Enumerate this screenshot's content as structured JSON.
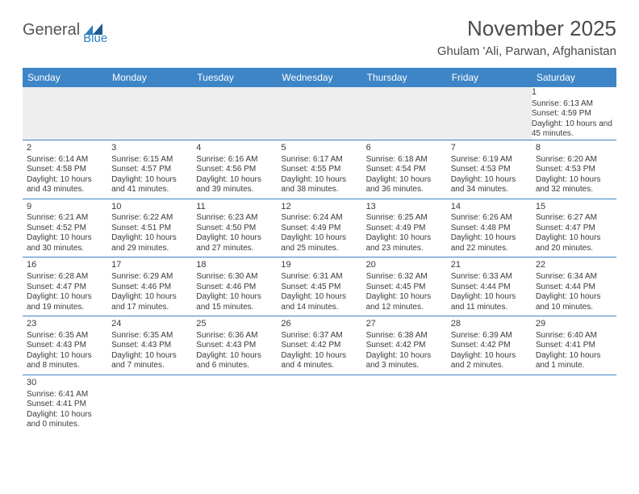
{
  "logo": {
    "main": "General",
    "sub": "Blue"
  },
  "title": "November 2025",
  "location": "Ghulam 'Ali, Parwan, Afghanistan",
  "colors": {
    "header_bg": "#3d85c6",
    "header_text": "#ffffff",
    "empty_bg": "#eeeeee",
    "row_divider": "#3d85c6",
    "text": "#3a3a3a",
    "logo_main": "#555555",
    "logo_sub": "#2f7fc2"
  },
  "weekdays": [
    "Sunday",
    "Monday",
    "Tuesday",
    "Wednesday",
    "Thursday",
    "Friday",
    "Saturday"
  ],
  "weeks": [
    [
      null,
      null,
      null,
      null,
      null,
      null,
      {
        "n": "1",
        "sr": "6:13 AM",
        "ss": "4:59 PM",
        "dl": "10 hours and 45 minutes."
      }
    ],
    [
      {
        "n": "2",
        "sr": "6:14 AM",
        "ss": "4:58 PM",
        "dl": "10 hours and 43 minutes."
      },
      {
        "n": "3",
        "sr": "6:15 AM",
        "ss": "4:57 PM",
        "dl": "10 hours and 41 minutes."
      },
      {
        "n": "4",
        "sr": "6:16 AM",
        "ss": "4:56 PM",
        "dl": "10 hours and 39 minutes."
      },
      {
        "n": "5",
        "sr": "6:17 AM",
        "ss": "4:55 PM",
        "dl": "10 hours and 38 minutes."
      },
      {
        "n": "6",
        "sr": "6:18 AM",
        "ss": "4:54 PM",
        "dl": "10 hours and 36 minutes."
      },
      {
        "n": "7",
        "sr": "6:19 AM",
        "ss": "4:53 PM",
        "dl": "10 hours and 34 minutes."
      },
      {
        "n": "8",
        "sr": "6:20 AM",
        "ss": "4:53 PM",
        "dl": "10 hours and 32 minutes."
      }
    ],
    [
      {
        "n": "9",
        "sr": "6:21 AM",
        "ss": "4:52 PM",
        "dl": "10 hours and 30 minutes."
      },
      {
        "n": "10",
        "sr": "6:22 AM",
        "ss": "4:51 PM",
        "dl": "10 hours and 29 minutes."
      },
      {
        "n": "11",
        "sr": "6:23 AM",
        "ss": "4:50 PM",
        "dl": "10 hours and 27 minutes."
      },
      {
        "n": "12",
        "sr": "6:24 AM",
        "ss": "4:49 PM",
        "dl": "10 hours and 25 minutes."
      },
      {
        "n": "13",
        "sr": "6:25 AM",
        "ss": "4:49 PM",
        "dl": "10 hours and 23 minutes."
      },
      {
        "n": "14",
        "sr": "6:26 AM",
        "ss": "4:48 PM",
        "dl": "10 hours and 22 minutes."
      },
      {
        "n": "15",
        "sr": "6:27 AM",
        "ss": "4:47 PM",
        "dl": "10 hours and 20 minutes."
      }
    ],
    [
      {
        "n": "16",
        "sr": "6:28 AM",
        "ss": "4:47 PM",
        "dl": "10 hours and 19 minutes."
      },
      {
        "n": "17",
        "sr": "6:29 AM",
        "ss": "4:46 PM",
        "dl": "10 hours and 17 minutes."
      },
      {
        "n": "18",
        "sr": "6:30 AM",
        "ss": "4:46 PM",
        "dl": "10 hours and 15 minutes."
      },
      {
        "n": "19",
        "sr": "6:31 AM",
        "ss": "4:45 PM",
        "dl": "10 hours and 14 minutes."
      },
      {
        "n": "20",
        "sr": "6:32 AM",
        "ss": "4:45 PM",
        "dl": "10 hours and 12 minutes."
      },
      {
        "n": "21",
        "sr": "6:33 AM",
        "ss": "4:44 PM",
        "dl": "10 hours and 11 minutes."
      },
      {
        "n": "22",
        "sr": "6:34 AM",
        "ss": "4:44 PM",
        "dl": "10 hours and 10 minutes."
      }
    ],
    [
      {
        "n": "23",
        "sr": "6:35 AM",
        "ss": "4:43 PM",
        "dl": "10 hours and 8 minutes."
      },
      {
        "n": "24",
        "sr": "6:35 AM",
        "ss": "4:43 PM",
        "dl": "10 hours and 7 minutes."
      },
      {
        "n": "25",
        "sr": "6:36 AM",
        "ss": "4:43 PM",
        "dl": "10 hours and 6 minutes."
      },
      {
        "n": "26",
        "sr": "6:37 AM",
        "ss": "4:42 PM",
        "dl": "10 hours and 4 minutes."
      },
      {
        "n": "27",
        "sr": "6:38 AM",
        "ss": "4:42 PM",
        "dl": "10 hours and 3 minutes."
      },
      {
        "n": "28",
        "sr": "6:39 AM",
        "ss": "4:42 PM",
        "dl": "10 hours and 2 minutes."
      },
      {
        "n": "29",
        "sr": "6:40 AM",
        "ss": "4:41 PM",
        "dl": "10 hours and 1 minute."
      }
    ],
    [
      {
        "n": "30",
        "sr": "6:41 AM",
        "ss": "4:41 PM",
        "dl": "10 hours and 0 minutes."
      },
      null,
      null,
      null,
      null,
      null,
      null
    ]
  ],
  "labels": {
    "sunrise": "Sunrise:",
    "sunset": "Sunset:",
    "daylight": "Daylight:"
  }
}
